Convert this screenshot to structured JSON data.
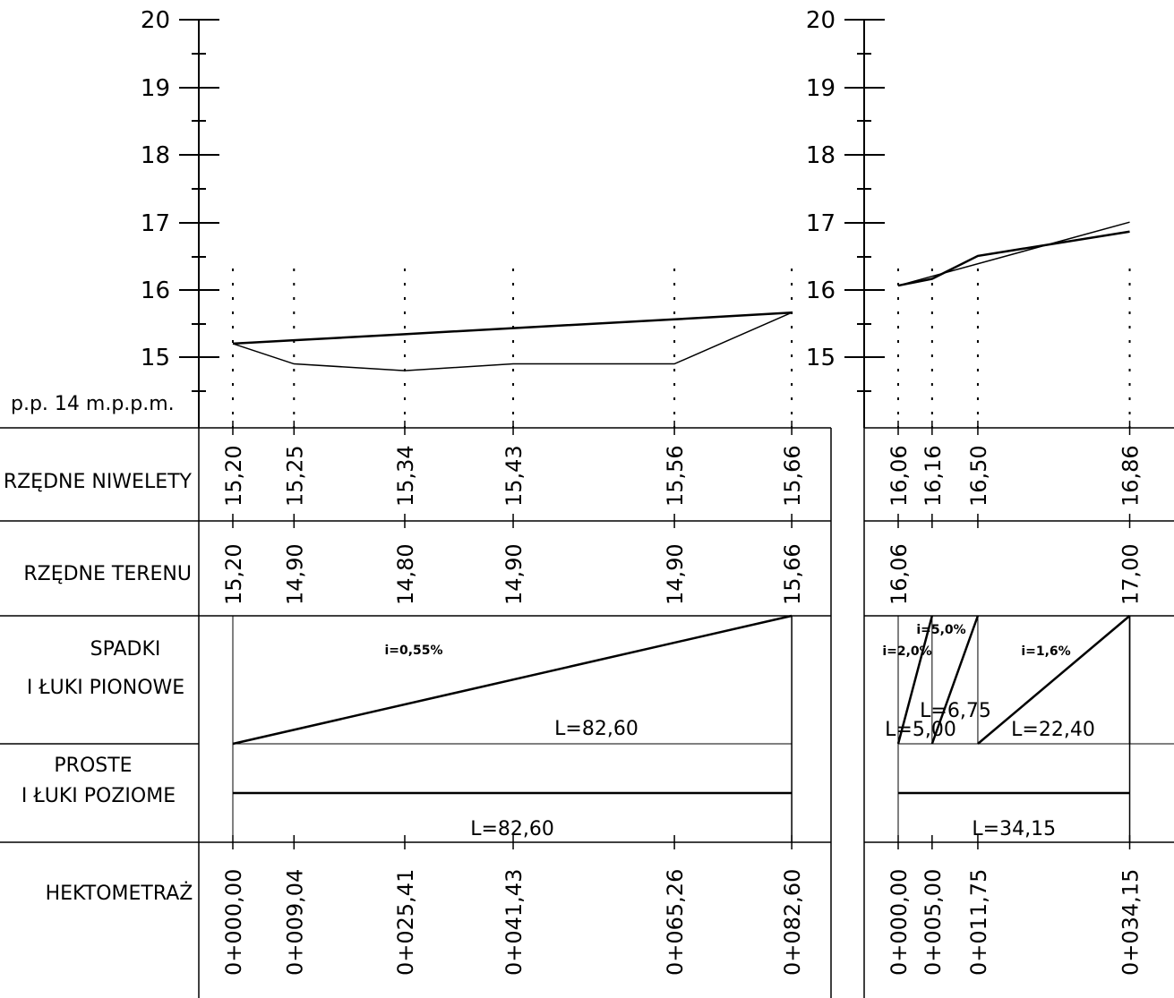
{
  "datum_label": "p.p. 14 m.p.p.m.",
  "elevation_ticks": [
    "20",
    "19",
    "18",
    "17",
    "16",
    "15"
  ],
  "row_labels": {
    "niwelety": "RZĘDNE NIWELETY",
    "terenu": "RZĘDNE TERENU",
    "spadki_1": "SPADKI",
    "spadki_2": "I ŁUKI PIONOWE",
    "proste_1": "PROSTE",
    "proste_2": "I ŁUKI POZIOME",
    "hektometraz": "HEKTOMETRAŻ"
  },
  "profiles": [
    {
      "stations": [
        {
          "chainage": 0.0,
          "chainage_label": "0+000,00",
          "niweleta": "15,20",
          "teren": "15,20"
        },
        {
          "chainage": 9.04,
          "chainage_label": "0+009,04",
          "niweleta": "15,25",
          "teren": "14,90"
        },
        {
          "chainage": 25.41,
          "chainage_label": "0+025,41",
          "niweleta": "15,34",
          "teren": "14,80"
        },
        {
          "chainage": 41.43,
          "chainage_label": "0+041,43",
          "niweleta": "15,43",
          "teren": "14,90"
        },
        {
          "chainage": 65.26,
          "chainage_label": "0+065,26",
          "niweleta": "15,56",
          "teren": "14,90"
        },
        {
          "chainage": 82.6,
          "chainage_label": "0+082,60",
          "niweleta": "15,66",
          "teren": "15,66"
        }
      ],
      "grades": [
        {
          "label": "i=0,55%",
          "length": "L=82,60"
        }
      ],
      "horizontal_length": "L=82,60"
    },
    {
      "stations": [
        {
          "chainage": 0.0,
          "chainage_label": "0+000,00",
          "niweleta": "16,06",
          "teren": "16,06"
        },
        {
          "chainage": 5.0,
          "chainage_label": "0+005,00",
          "niweleta": "16,16",
          "teren": ""
        },
        {
          "chainage": 11.75,
          "chainage_label": "0+011,75",
          "niweleta": "16,50",
          "teren": ""
        },
        {
          "chainage": 34.15,
          "chainage_label": "0+034,15",
          "niweleta": "16,86",
          "teren": "17,00"
        }
      ],
      "grades": [
        {
          "label": "i=2,0%",
          "length": "L=5,00"
        },
        {
          "label": "i=5,0%",
          "length": "L=6,75"
        },
        {
          "label": "i=1,6%",
          "length": "L=22,40"
        }
      ],
      "horizontal_length": "L=34,15"
    }
  ]
}
